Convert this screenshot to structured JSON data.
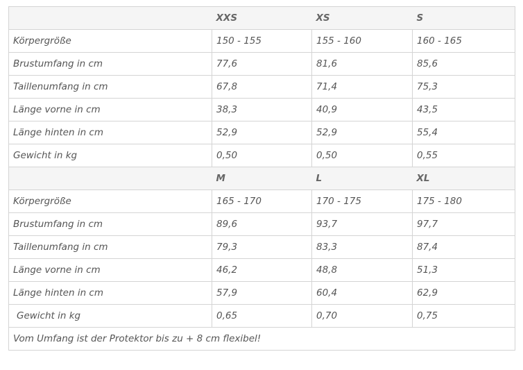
{
  "groups": [
    {
      "sizes": [
        "XXS",
        "XS",
        "S"
      ],
      "rows": [
        {
          "label": "Körpergröße",
          "values": [
            "150 - 155",
            "155 - 160",
            "160 - 165"
          ]
        },
        {
          "label": "Brustumfang in cm",
          "values": [
            "77,6",
            "81,6",
            "85,6"
          ]
        },
        {
          "label": "Taillenumfang in cm",
          "values": [
            "67,8",
            "71,4",
            "75,3"
          ]
        },
        {
          "label": "Länge vorne in cm",
          "values": [
            "38,3",
            "40,9",
            "43,5"
          ]
        },
        {
          "label": "Länge hinten in cm",
          "values": [
            "52,9",
            "52,9",
            "55,4"
          ]
        },
        {
          "label": "Gewicht in kg",
          "values": [
            "0,50",
            "0,50",
            "0,55"
          ]
        }
      ]
    },
    {
      "sizes": [
        "M",
        "L",
        "XL"
      ],
      "rows": [
        {
          "label": "Körpergröße",
          "values": [
            "165 - 170",
            "170 - 175",
            "175 - 180"
          ]
        },
        {
          "label": "Brustumfang in cm",
          "values": [
            "89,6",
            "93,7",
            "97,7"
          ]
        },
        {
          "label": "Taillenumfang in cm",
          "values": [
            "79,3",
            "83,3",
            "87,4"
          ]
        },
        {
          "label": "Länge vorne in cm",
          "values": [
            "46,2",
            "48,8",
            "51,3"
          ]
        },
        {
          "label": "Länge hinten in cm",
          "values": [
            "57,9",
            "60,4",
            "62,9"
          ]
        },
        {
          "label": "Gewicht in kg",
          "values": [
            "0,65",
            "0,70",
            "0,75"
          ]
        }
      ]
    }
  ],
  "footnote": "Vom Umfang ist der Protektor bis zu + 8 cm flexibel!"
}
